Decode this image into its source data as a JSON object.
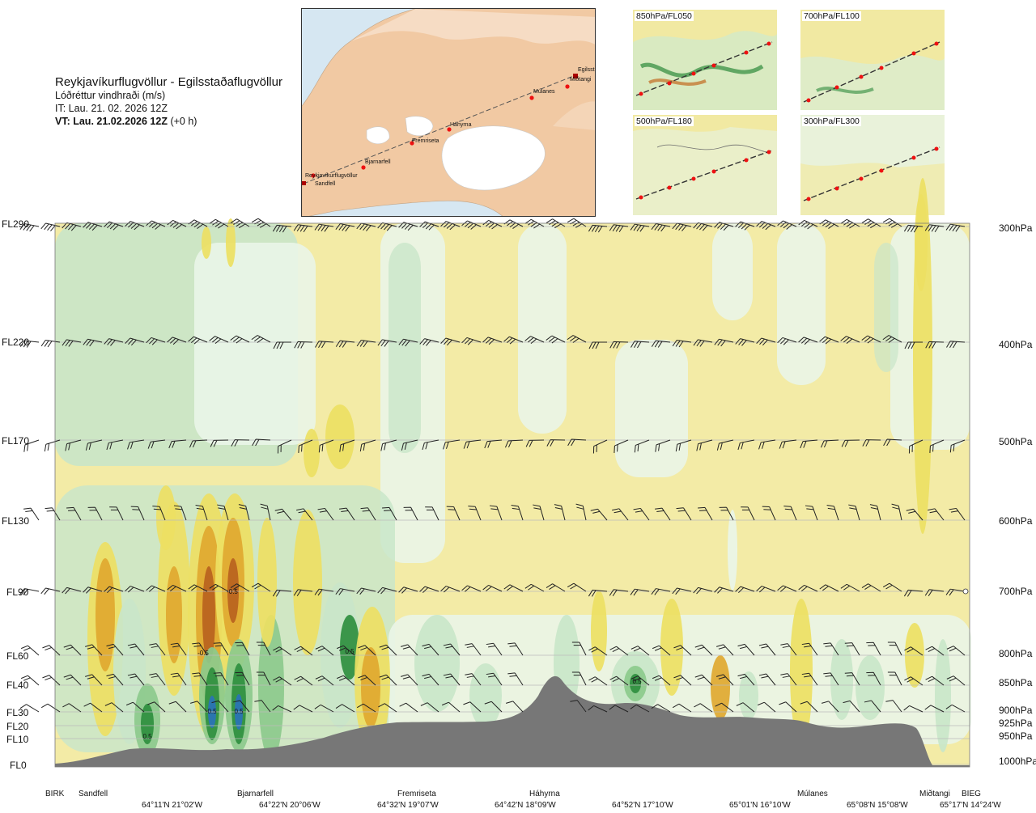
{
  "header": {
    "title": "Reykjavíkurflugvöllur - Egilsstaðaflugvöllur",
    "subtitle": "Lóðréttur vindhraði (m/s)",
    "issue_time": "IT: Lau. 21. 02. 2026 12Z",
    "valid_prefix": "VT: Lau. 21.02.2026 12Z",
    "valid_suffix": " (+0 h)"
  },
  "map": {
    "places": [
      "Reykjavíkurflugvöllur",
      "Sandfell",
      "Bjarnarfell",
      "Fremriseta",
      "Háhyrna",
      "Múlanes",
      "Miðtangi",
      "Egilsst"
    ]
  },
  "mini_maps": [
    {
      "label": "850hPa/FL050"
    },
    {
      "label": "700hPa/FL100"
    },
    {
      "label": "500hPa/FL180"
    },
    {
      "label": "300hPa/FL300"
    }
  ],
  "levels": [
    {
      "fl": "FL290",
      "hpa": "300hPa"
    },
    {
      "fl": "FL220",
      "hpa": "400hPa"
    },
    {
      "fl": "FL170",
      "hpa": "500hPa"
    },
    {
      "fl": "FL130",
      "hpa": "600hPa"
    },
    {
      "fl": "FL90",
      "hpa": "700hPa"
    },
    {
      "fl": "FL60",
      "hpa": "800hPa"
    },
    {
      "fl": "FL40",
      "hpa": "850hPa"
    },
    {
      "fl": "FL30",
      "hpa": "900hPa"
    },
    {
      "fl": "FL20",
      "hpa": "925hPa"
    },
    {
      "fl": "FL10",
      "hpa": "950hPa"
    },
    {
      "fl": "FL0",
      "hpa": "1000hPa"
    }
  ],
  "waypoints": [
    "BIRK",
    "Sandfell",
    "Bjarnarfell",
    "Fremriseta",
    "Háhyrna",
    "Múlanes",
    "Miðtangi",
    "BIEG"
  ],
  "coords": [
    "64°11'N 21°02'W",
    "64°22'N 20°06'W",
    "64°32'N 19°07'W",
    "64°42'N 18°09'W",
    "64°52'N 17°10'W",
    "65°01'N 16°10'W",
    "65°08'N 15°08'W",
    "65°17'N 14°24'W"
  ],
  "chart_data": {
    "type": "heatmap",
    "title": "Reykjavíkurflugvöllur - Egilsstaðaflugvöllur",
    "variable": "Lóðréttur vindhraði (m/s)",
    "y_levels_fl": [
      "FL0",
      "FL10",
      "FL20",
      "FL30",
      "FL40",
      "FL60",
      "FL90",
      "FL130",
      "FL170",
      "FL220",
      "FL290"
    ],
    "y_levels_hpa": [
      "1000hPa",
      "950hPa",
      "925hPa",
      "900hPa",
      "850hPa",
      "800hPa",
      "700hPa",
      "600hPa",
      "500hPa",
      "400hPa",
      "300hPa"
    ],
    "x_waypoints": [
      "BIRK",
      "Sandfell",
      "Bjarnarfell",
      "Fremriseta",
      "Háhyrna",
      "Múlanes",
      "Miðtangi",
      "BIEG"
    ],
    "contour_labels": [
      "0.5",
      "-0.5",
      "-0.5",
      "0.5",
      "0.5",
      "0.5",
      "0.5",
      "0.5"
    ],
    "colors": {
      "background": "#f3eba6",
      "weak_sink": "#eaf5e8",
      "sink": "#c9e6c9",
      "strong_sink": "#8cca8c",
      "very_strong_sink": "#2f8f3f",
      "extreme_sink": "#2a72b8",
      "rise": "#ede063",
      "strong_rise": "#e0a830",
      "very_strong_rise": "#b8621e",
      "terrain": "#777777"
    }
  }
}
